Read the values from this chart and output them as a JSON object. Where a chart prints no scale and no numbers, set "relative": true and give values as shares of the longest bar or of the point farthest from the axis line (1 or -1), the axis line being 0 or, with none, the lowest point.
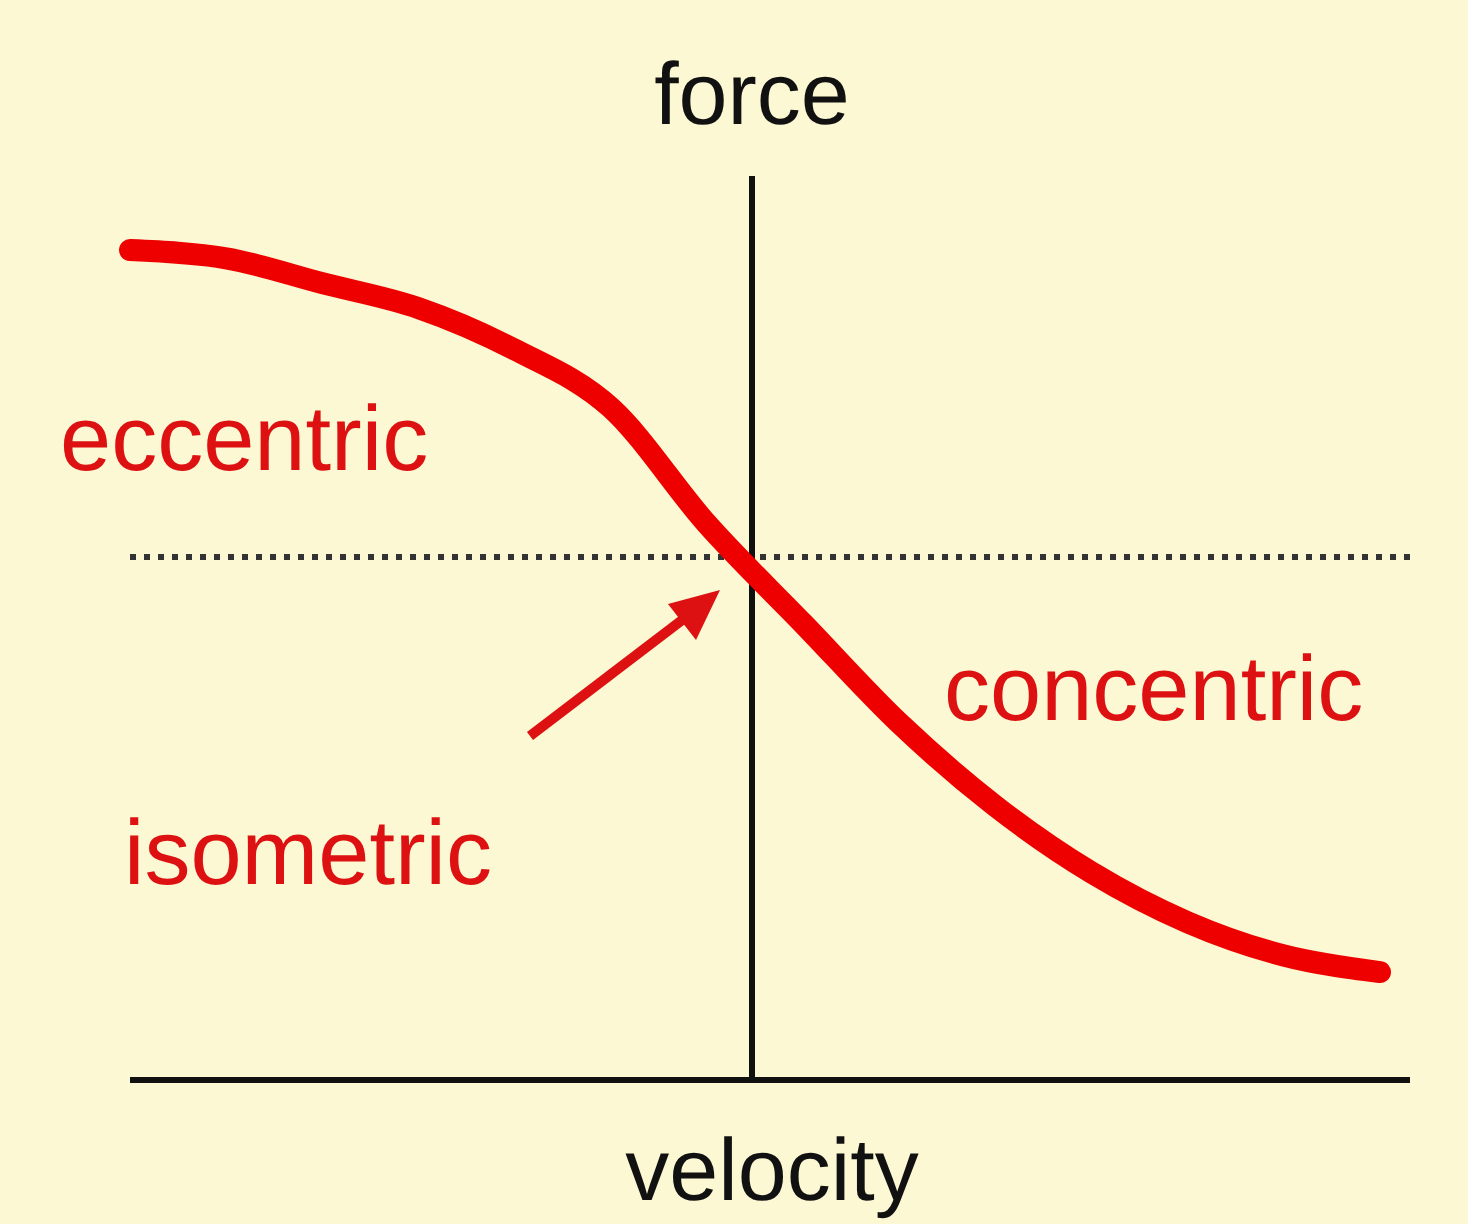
{
  "chart_data": {
    "type": "line",
    "relative": true,
    "xlabel": "velocity",
    "ylabel": "force",
    "categories": [
      null,
      null,
      null,
      null,
      null,
      null,
      null,
      null,
      null,
      null,
      null,
      null,
      null,
      null
    ],
    "series": [
      {
        "color": "#ee0000",
        "values": [
          1.0,
          0.99,
          0.96,
          0.93,
          0.88,
          0.81,
          0.67,
          0.55,
          0.43,
          0.33,
          0.25,
          0.19,
          0.15,
          0.13
        ]
      }
    ],
    "ref_lines": [
      {
        "axis": "y",
        "value": 0.63,
        "color": "#333333",
        "line_style": "dotted"
      }
    ],
    "annotations": [
      "eccentric",
      "concentric",
      "isometric"
    ],
    "marker": "none",
    "line_style": "solid"
  }
}
